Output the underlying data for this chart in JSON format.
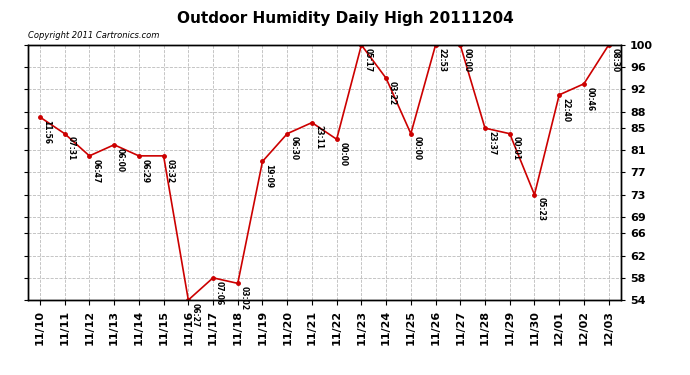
{
  "title": "Outdoor Humidity Daily High 20111204",
  "copyright": "Copyright 2011 Cartronics.com",
  "x_labels": [
    "11/10",
    "11/11",
    "11/12",
    "11/13",
    "11/14",
    "11/15",
    "11/16",
    "11/17",
    "11/18",
    "11/19",
    "11/20",
    "11/21",
    "11/22",
    "11/23",
    "11/24",
    "11/25",
    "11/26",
    "11/27",
    "11/28",
    "11/29",
    "11/30",
    "12/01",
    "12/02",
    "12/03"
  ],
  "y_values": [
    87,
    84,
    80,
    82,
    80,
    80,
    54,
    58,
    57,
    79,
    84,
    86,
    83,
    100,
    94,
    84,
    100,
    100,
    85,
    84,
    73,
    91,
    93,
    100
  ],
  "time_labels": [
    "11:56",
    "07:31",
    "06:47",
    "06:00",
    "06:29",
    "03:32",
    "06:27",
    "07:06",
    "03:02",
    "19:09",
    "06:30",
    "23:11",
    "00:00",
    "05:17",
    "03:22",
    "00:00",
    "22:53",
    "00:00",
    "23:37",
    "00:01",
    "05:23",
    "22:40",
    "00:46",
    "08:30"
  ],
  "ylim_min": 54,
  "ylim_max": 100,
  "yticks": [
    54,
    58,
    62,
    66,
    69,
    73,
    77,
    81,
    85,
    88,
    92,
    96,
    100
  ],
  "line_color": "#cc0000",
  "marker_color": "#cc0000",
  "bg_color": "#ffffff",
  "grid_color": "#bbbbbb",
  "title_fontsize": 11,
  "tick_fontsize": 8
}
